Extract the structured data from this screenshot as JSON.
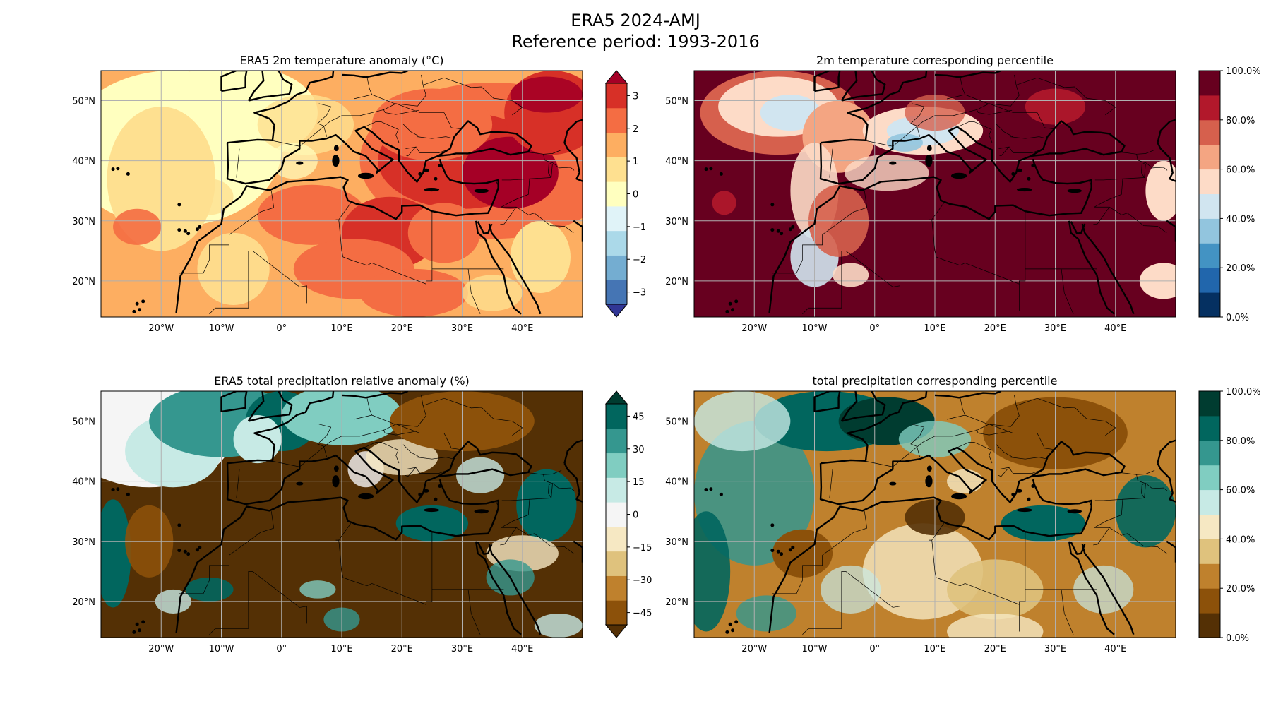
{
  "figure": {
    "title": "ERA5 2024-AMJ",
    "subtitle": "Reference period: 1993-2016"
  },
  "axes": {
    "x_tick_labels": [
      "20°W",
      "10°W",
      "0°",
      "10°E",
      "20°E",
      "30°E",
      "40°E"
    ],
    "y_tick_labels": [
      "50°N",
      "40°N",
      "30°N",
      "20°N"
    ]
  },
  "panels": [
    {
      "id": "t2m-anomaly",
      "title": "ERA5 2m temperature anomaly (°C)",
      "colorbar": {
        "ticks": [
          "3",
          "2",
          "1",
          "0",
          "−1",
          "−2",
          "−3"
        ],
        "extend": "both",
        "colors": [
          "#313695",
          "#4575b4",
          "#74add1",
          "#abd9e9",
          "#e0f3f8",
          "#ffffbf",
          "#fee090",
          "#fdae61",
          "#f46d43",
          "#d73027",
          "#a50026"
        ]
      }
    },
    {
      "id": "t2m-percentile",
      "title": "2m temperature corresponding percentile",
      "colorbar": {
        "ticks": [
          "100.0%",
          "80.0%",
          "60.0%",
          "40.0%",
          "20.0%",
          "0.0%"
        ],
        "extend": "neither",
        "colors": [
          "#053061",
          "#2166ac",
          "#4393c3",
          "#92c5de",
          "#d1e5f0",
          "#fddbc7",
          "#f4a582",
          "#d6604d",
          "#b2182b",
          "#67001f"
        ]
      }
    },
    {
      "id": "tp-anomaly",
      "title": "ERA5 total precipitation relative anomaly (%)",
      "colorbar": {
        "ticks": [
          "45",
          "30",
          "15",
          "0",
          "−15",
          "−30",
          "−45"
        ],
        "extend": "both",
        "colors": [
          "#543005",
          "#8c510a",
          "#bf812d",
          "#dfc27d",
          "#f6e8c3",
          "#f5f5f5",
          "#c7eae5",
          "#80cdc1",
          "#35978f",
          "#01665e",
          "#003c30"
        ]
      }
    },
    {
      "id": "tp-percentile",
      "title": "total precipitation corresponding percentile",
      "colorbar": {
        "ticks": [
          "100.0%",
          "80.0%",
          "60.0%",
          "40.0%",
          "20.0%",
          "0.0%"
        ],
        "extend": "neither",
        "colors": [
          "#543005",
          "#8c510a",
          "#bf812d",
          "#dfc27d",
          "#f6e8c3",
          "#c7eae5",
          "#80cdc1",
          "#35978f",
          "#01665e",
          "#003c30"
        ]
      }
    }
  ]
}
